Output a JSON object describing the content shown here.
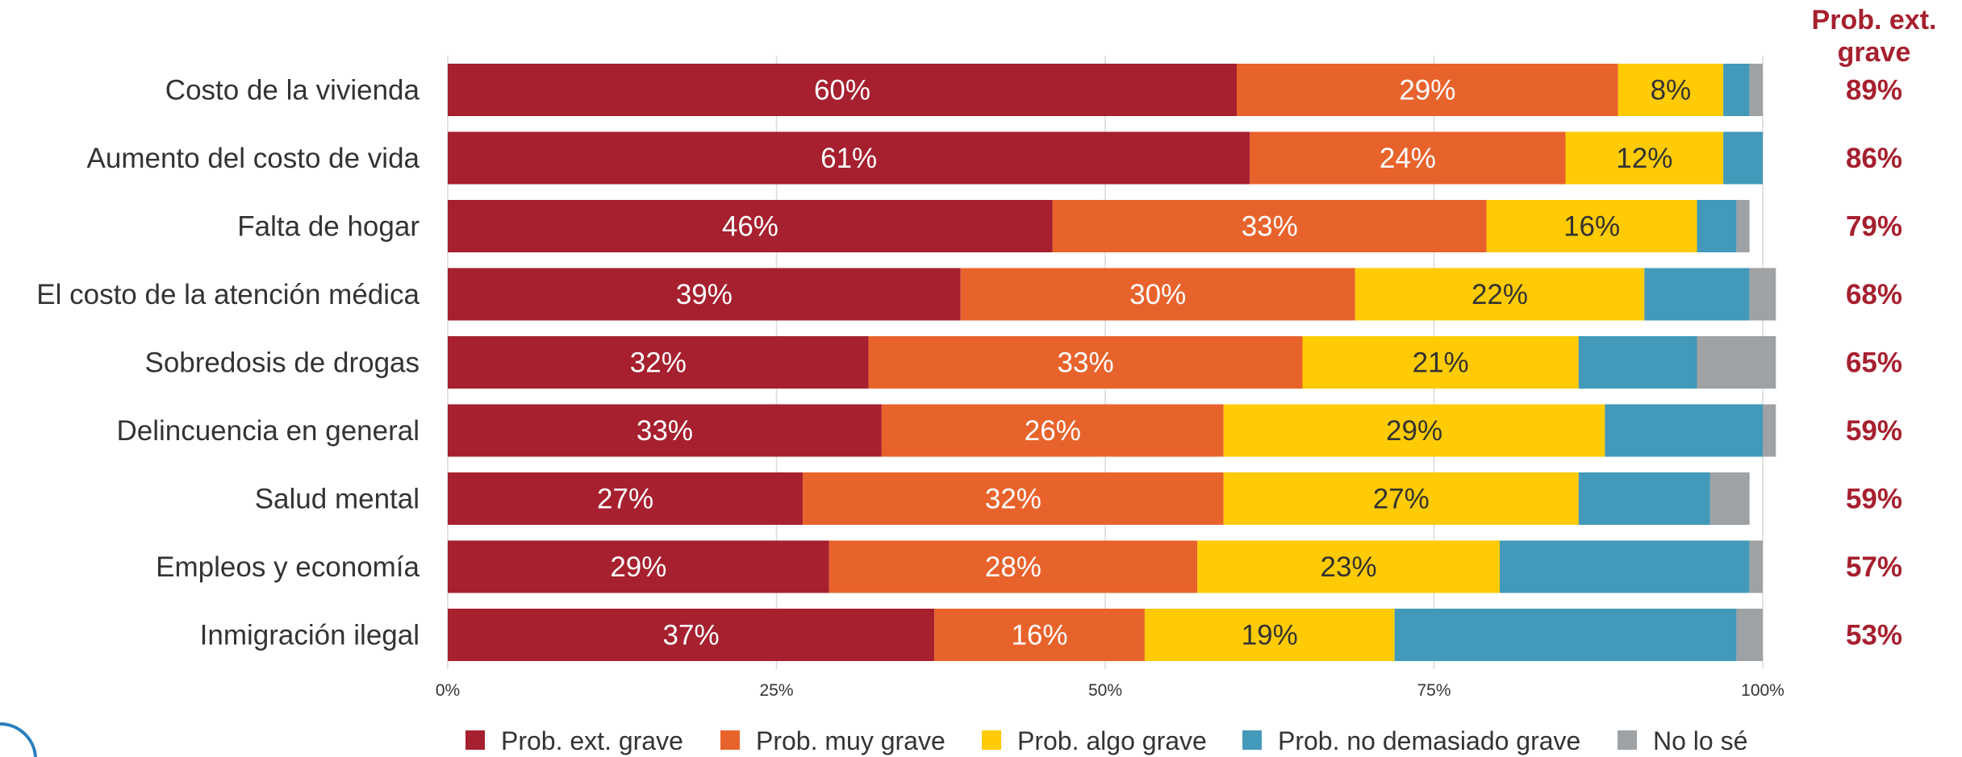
{
  "chart_data": {
    "type": "bar",
    "orientation": "horizontal",
    "stacked": true,
    "categories": [
      "Costo de la vivienda",
      "Aumento del costo de vida",
      "Falta de hogar",
      "El costo de la atención médica",
      "Sobredosis de drogas",
      "Delincuencia en general",
      "Salud mental",
      "Empleos y economía",
      "Inmigración ilegal"
    ],
    "series": [
      {
        "name": "Prob. ext. grave",
        "color": "#a6202f",
        "label_color": "#ffffff",
        "values": [
          60,
          61,
          46,
          39,
          32,
          33,
          27,
          29,
          37
        ],
        "labels": [
          "60%",
          "61%",
          "46%",
          "39%",
          "32%",
          "33%",
          "27%",
          "29%",
          "37%"
        ]
      },
      {
        "name": "Prob. muy grave",
        "color": "#e8632c",
        "label_color": "#ffffff",
        "values": [
          29,
          24,
          33,
          30,
          33,
          26,
          32,
          28,
          16
        ],
        "labels": [
          "29%",
          "24%",
          "33%",
          "30%",
          "33%",
          "26%",
          "32%",
          "28%",
          "16%"
        ]
      },
      {
        "name": "Prob. algo grave",
        "color": "#fecb04",
        "label_color": "#333333",
        "values": [
          8,
          12,
          16,
          22,
          21,
          29,
          27,
          23,
          19
        ],
        "labels": [
          "8%",
          "12%",
          "16%",
          "22%",
          "21%",
          "29%",
          "27%",
          "23%",
          "19%"
        ]
      },
      {
        "name": "Prob. no demasiado grave",
        "color": "#4299b9",
        "label_color": "#ffffff",
        "values": [
          2,
          3,
          3,
          8,
          9,
          12,
          10,
          19,
          26
        ],
        "labels": [
          "",
          "",
          "",
          "",
          "",
          "",
          "",
          "",
          ""
        ]
      },
      {
        "name": "No lo sé",
        "color": "#9ea2a4",
        "label_color": "#ffffff",
        "values": [
          1,
          0,
          1,
          2,
          6,
          1,
          3,
          1,
          2
        ],
        "labels": [
          "",
          "",
          "",
          "",
          "",
          "",
          "",
          "",
          ""
        ]
      }
    ],
    "totals": {
      "header": [
        "Prob. ext.",
        "grave"
      ],
      "values": [
        "89%",
        "86%",
        "79%",
        "68%",
        "65%",
        "59%",
        "59%",
        "57%",
        "53%"
      ]
    },
    "xticks": [
      "0%",
      "25%",
      "50%",
      "75%",
      "100%"
    ],
    "xlim": [
      0,
      100
    ],
    "grid": true,
    "legend_position": "bottom"
  }
}
